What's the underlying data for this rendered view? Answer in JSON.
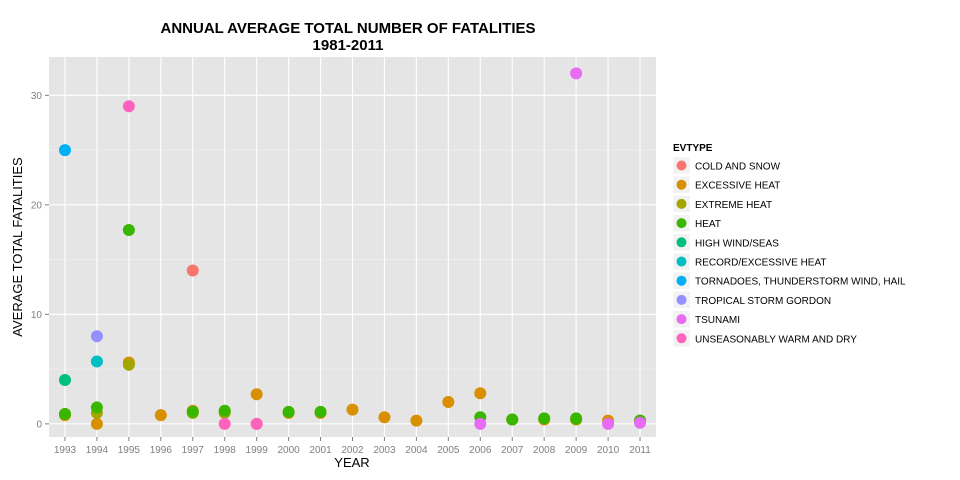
{
  "chart_data": {
    "type": "scatter",
    "title": "ANNUAL AVERAGE TOTAL NUMBER OF FATALITIES",
    "subtitle": "1981-2011",
    "xlabel": "YEAR",
    "ylabel": "AVERAGE TOTAL FATALITIES",
    "x_categories": [
      "1993",
      "1994",
      "1995",
      "1996",
      "1997",
      "1998",
      "1999",
      "2000",
      "2001",
      "2002",
      "2003",
      "2004",
      "2005",
      "2006",
      "2007",
      "2008",
      "2009",
      "2010",
      "2011"
    ],
    "ylim": [
      -1.2,
      33.5
    ],
    "y_ticks": [
      0,
      10,
      20,
      30
    ],
    "grid": true,
    "legend_title": "EVTYPE",
    "legend_position": "right",
    "series": [
      {
        "name": "COLD AND SNOW",
        "color": "#F8766D",
        "points": [
          {
            "x": "1997",
            "y": 14
          }
        ]
      },
      {
        "name": "EXCESSIVE HEAT",
        "color": "#D89000",
        "points": [
          {
            "x": "1993",
            "y": 0.8
          },
          {
            "x": "1994",
            "y": 0
          },
          {
            "x": "1995",
            "y": 5.6
          },
          {
            "x": "1996",
            "y": 0.8
          },
          {
            "x": "1997",
            "y": 1.2
          },
          {
            "x": "1998",
            "y": 1.1
          },
          {
            "x": "1999",
            "y": 2.7
          },
          {
            "x": "2000",
            "y": 1.0
          },
          {
            "x": "2001",
            "y": 1.0
          },
          {
            "x": "2002",
            "y": 1.3
          },
          {
            "x": "2003",
            "y": 0.6
          },
          {
            "x": "2004",
            "y": 0.3
          },
          {
            "x": "2005",
            "y": 2.0
          },
          {
            "x": "2006",
            "y": 2.8
          },
          {
            "x": "2007",
            "y": 0.4
          },
          {
            "x": "2008",
            "y": 0.4
          },
          {
            "x": "2009",
            "y": 0.4
          },
          {
            "x": "2010",
            "y": 0.3
          },
          {
            "x": "2011",
            "y": 0.3
          }
        ]
      },
      {
        "name": "EXTREME HEAT",
        "color": "#A3A500",
        "points": [
          {
            "x": "1993",
            "y": 0.9
          },
          {
            "x": "1994",
            "y": 1.0
          },
          {
            "x": "1995",
            "y": 5.4
          },
          {
            "x": "1997",
            "y": 1.0
          },
          {
            "x": "1998",
            "y": 1.0
          },
          {
            "x": "2009",
            "y": 0.4
          }
        ]
      },
      {
        "name": "HEAT",
        "color": "#39B600",
        "points": [
          {
            "x": "1993",
            "y": 0.9
          },
          {
            "x": "1994",
            "y": 1.5
          },
          {
            "x": "1995",
            "y": 17.7
          },
          {
            "x": "1997",
            "y": 1.1
          },
          {
            "x": "1998",
            "y": 1.2
          },
          {
            "x": "2000",
            "y": 1.1
          },
          {
            "x": "2001",
            "y": 1.1
          },
          {
            "x": "2006",
            "y": 0.6
          },
          {
            "x": "2007",
            "y": 0.4
          },
          {
            "x": "2008",
            "y": 0.5
          },
          {
            "x": "2009",
            "y": 0.5
          },
          {
            "x": "2011",
            "y": 0.3
          }
        ]
      },
      {
        "name": "HIGH WIND/SEAS",
        "color": "#00BF7D",
        "points": [
          {
            "x": "1993",
            "y": 4.0
          }
        ]
      },
      {
        "name": "RECORD/EXCESSIVE HEAT",
        "color": "#00BFC4",
        "points": [
          {
            "x": "1994",
            "y": 5.7
          }
        ]
      },
      {
        "name": "TORNADOES, THUNDERSTORM WIND, HAIL",
        "color": "#00B0F6",
        "points": [
          {
            "x": "1993",
            "y": 25
          }
        ]
      },
      {
        "name": "TROPICAL STORM GORDON",
        "color": "#9590FF",
        "points": [
          {
            "x": "1994",
            "y": 8
          }
        ]
      },
      {
        "name": "TSUNAMI",
        "color": "#E76BF3",
        "points": [
          {
            "x": "1999",
            "y": 0
          },
          {
            "x": "2006",
            "y": 0
          },
          {
            "x": "2009",
            "y": 32
          },
          {
            "x": "2010",
            "y": 0
          },
          {
            "x": "2011",
            "y": 0.1
          }
        ]
      },
      {
        "name": "UNSEASONABLY WARM AND DRY",
        "color": "#FF62BC",
        "points": [
          {
            "x": "1995",
            "y": 29
          },
          {
            "x": "1998",
            "y": 0
          },
          {
            "x": "1999",
            "y": 0
          }
        ]
      }
    ]
  }
}
